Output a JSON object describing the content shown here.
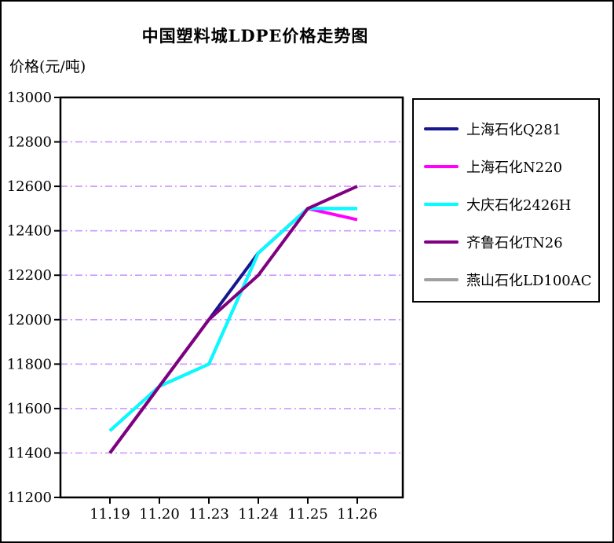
{
  "chart_data": {
    "type": "line",
    "title": "中国塑料城LDPE价格走势图",
    "ylabel": "价格(元/吨)",
    "xlabel": "",
    "categories": [
      "11.19",
      "11.20",
      "11.23",
      "11.24",
      "11.25",
      "11.26"
    ],
    "ylim": [
      11200,
      13000
    ],
    "ytick_step": 200,
    "yticks": [
      11200,
      11400,
      11600,
      11800,
      12000,
      12200,
      12400,
      12600,
      12800,
      13000
    ],
    "grid": "horizontal",
    "gridline_style": "dash-dot",
    "gridline_color": "#CC99FF",
    "legend_position": "right",
    "line_width": 4,
    "axis_color": "#000000",
    "series": [
      {
        "name": "上海石化Q281",
        "color": "#17178F",
        "values": [
          11400,
          11700,
          12000,
          12300,
          12500,
          12500
        ]
      },
      {
        "name": "上海石化N220",
        "color": "#FF00FF",
        "values": [
          11500,
          11700,
          11800,
          12300,
          12500,
          12450
        ]
      },
      {
        "name": "大庆石化2426H",
        "color": "#00FFFF",
        "values": [
          11500,
          11700,
          11800,
          12300,
          12500,
          12500
        ]
      },
      {
        "name": "齐鲁石化TN26",
        "color": "#800080",
        "values": [
          11400,
          11700,
          12000,
          12200,
          12500,
          12600
        ]
      },
      {
        "name": "燕山石化LD100AC",
        "color": "#A0A0A0",
        "values": []
      }
    ]
  }
}
